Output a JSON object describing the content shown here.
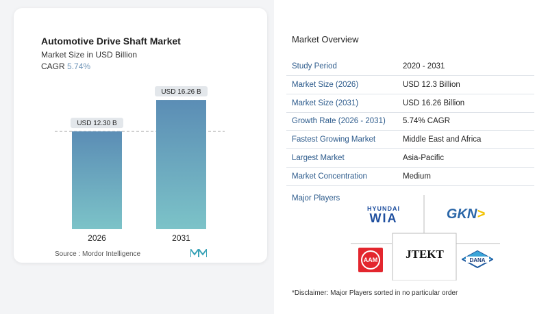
{
  "chart_data": {
    "type": "bar",
    "title": "Automotive Drive Shaft Market",
    "subtitle": "Market Size in USD Billion",
    "cagr_label": "CAGR",
    "cagr_value": "5.74%",
    "categories": [
      "2026",
      "2031"
    ],
    "values": [
      12.3,
      16.26
    ],
    "data_labels": [
      "USD 12.30 B",
      "USD 16.26 B"
    ],
    "ylim": [
      0,
      16.26
    ],
    "reference_line": "dashed at 2026 value",
    "bar_color_top": "#5b8db5",
    "bar_color_bottom": "#7cc3c8",
    "source": "Source :  Mordor Intelligence"
  },
  "overview": {
    "title": "Market Overview",
    "rows": [
      {
        "label": "Study Period",
        "value": "2020 - 2031"
      },
      {
        "label": "Market Size (2026)",
        "value": "USD 12.3 Billion"
      },
      {
        "label": "Market Size (2031)",
        "value": "USD 16.26 Billion"
      },
      {
        "label": "Growth Rate (2026 - 2031)",
        "value": "5.74% CAGR"
      },
      {
        "label": "Fastest Growing Market",
        "value": "Middle East and Africa"
      },
      {
        "label": "Largest Market",
        "value": "Asia-Pacific"
      },
      {
        "label": "Market Concentration",
        "value": "Medium"
      }
    ],
    "major_players_label": "Major Players",
    "players": [
      "HYUNDAI WIA",
      "GKN",
      "AAM",
      "JTEKT",
      "DANA"
    ],
    "disclaimer": "*Disclaimer: Major Players sorted in no particular order"
  }
}
